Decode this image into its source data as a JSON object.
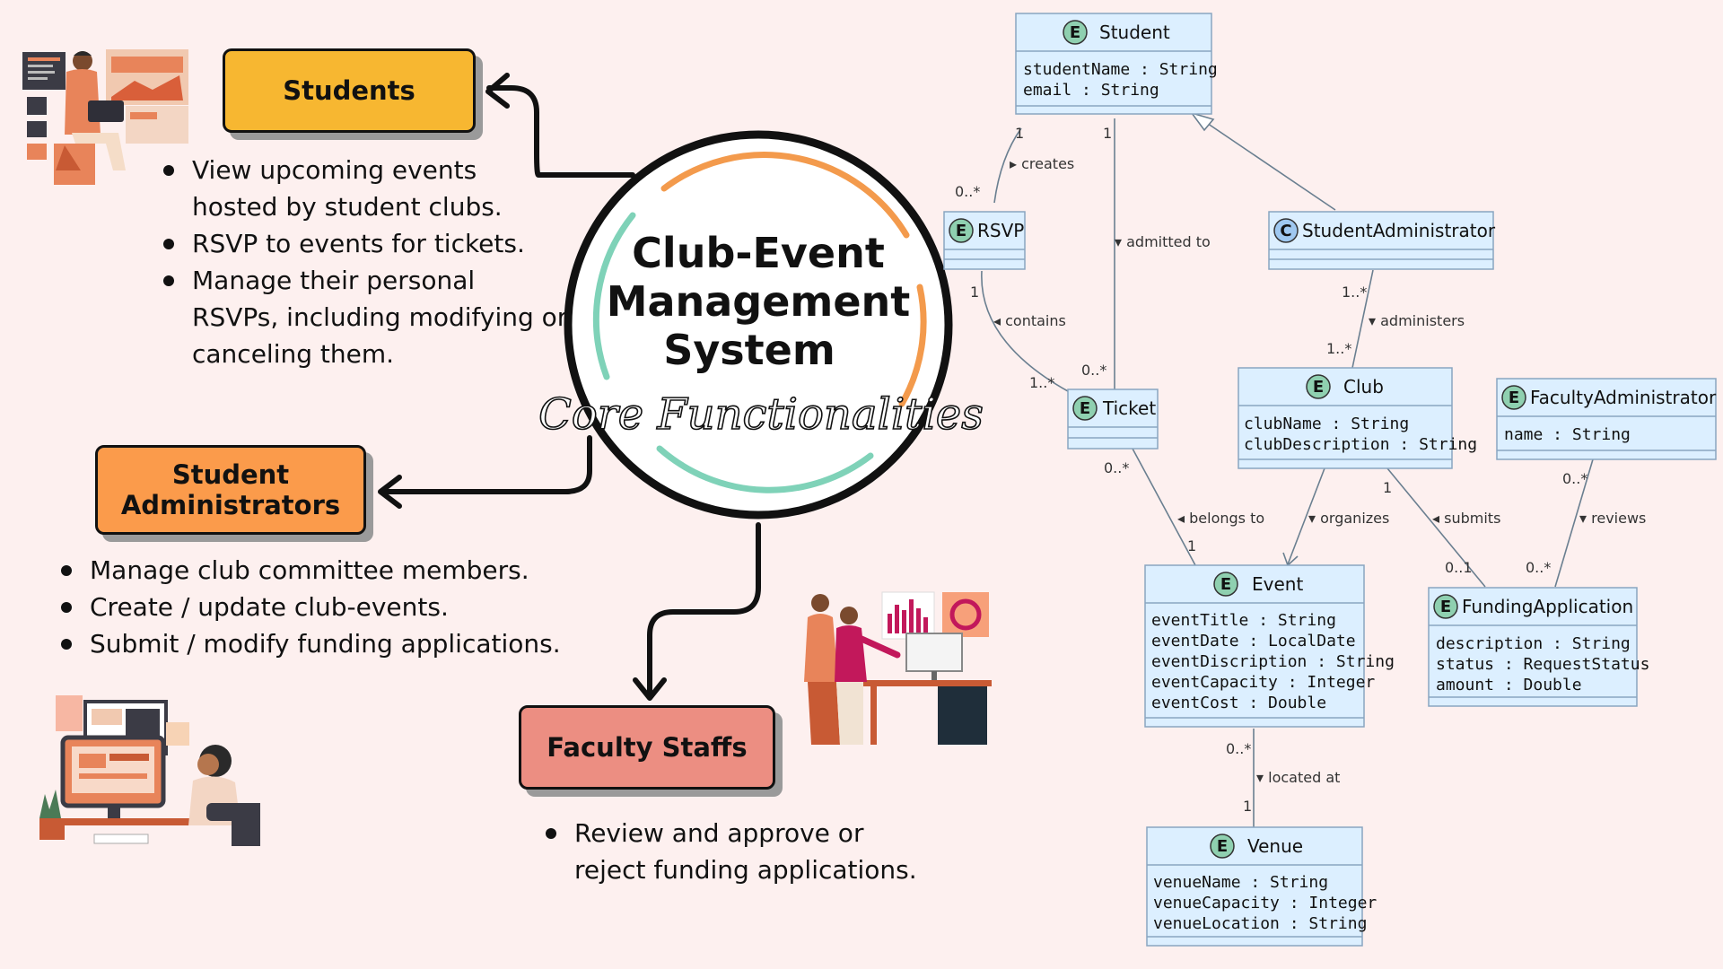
{
  "center": {
    "title_lines": [
      "Club-Event",
      "Management",
      "System"
    ],
    "subtitle": "Core Functionalities"
  },
  "roles": {
    "students": {
      "label": "Students",
      "color": "#f7b731",
      "bullets": [
        "View upcoming events",
        "hosted by student clubs.",
        "RSVP to events for tickets.",
        "Manage their personal",
        "RSVPs, including modifying or",
        "canceling them."
      ]
    },
    "student_admins": {
      "label_lines": [
        "Student",
        "Administrators"
      ],
      "color": "#fb9b4b",
      "bullets": [
        "Manage club committee members.",
        "Create / update club-events.",
        "Submit / modify funding applications."
      ]
    },
    "faculty": {
      "label": "Faculty Staffs",
      "color": "#ec8e82",
      "bullets": [
        "Review and approve or",
        "reject funding applications."
      ]
    }
  },
  "uml": {
    "classes": {
      "student": {
        "stereotype": "E",
        "name": "Student",
        "attrs": [
          "studentName : String",
          "email : String"
        ]
      },
      "rsvp": {
        "stereotype": "E",
        "name": "RSVP",
        "attrs": []
      },
      "student_admin": {
        "stereotype": "C",
        "name": "StudentAdministrator",
        "attrs": []
      },
      "ticket": {
        "stereotype": "E",
        "name": "Ticket",
        "attrs": []
      },
      "club": {
        "stereotype": "E",
        "name": "Club",
        "attrs": [
          "clubName : String",
          "clubDescription : String"
        ]
      },
      "faculty_admin": {
        "stereotype": "E",
        "name": "FacultyAdministrator",
        "attrs": [
          "name : String"
        ]
      },
      "event": {
        "stereotype": "E",
        "name": "Event",
        "attrs": [
          "eventTitle : String",
          "eventDate : LocalDate",
          "eventDiscription : String",
          "eventCapacity : Integer",
          "eventCost : Double"
        ]
      },
      "funding_app": {
        "stereotype": "E",
        "name": "FundingApplication",
        "attrs": [
          "description : String",
          "status : RequestStatus",
          "amount : Double"
        ]
      },
      "venue": {
        "stereotype": "E",
        "name": "Venue",
        "attrs": [
          "venueName : String",
          "venueCapacity : Integer",
          "venueLocation : String"
        ]
      }
    },
    "associations": {
      "creates": {
        "label": "creates",
        "m1": "1",
        "m2": "0..*"
      },
      "admitted_to": {
        "label": "admitted to",
        "m1": "1",
        "m2": "0..*"
      },
      "contains": {
        "label": "contains",
        "m1": "1",
        "m2": "1..*"
      },
      "administers": {
        "label": "administers",
        "m1": "1..*",
        "m2": "1..*"
      },
      "belongs_to": {
        "label": "belongs to",
        "m1": "0..*",
        "m2": "1"
      },
      "organizes": {
        "label": "organizes"
      },
      "submits": {
        "label": "submits",
        "m1": "1",
        "m2": "0..1"
      },
      "reviews": {
        "label": "reviews",
        "m1": "0..*",
        "m2": "0..*"
      },
      "located_at": {
        "label": "located at",
        "m1": "0..*",
        "m2": "1"
      }
    }
  },
  "colors": {
    "background": "#fdf0ef",
    "uml_fill": "#dcefff",
    "uml_stroke": "#8aa6c0",
    "badge_entity": "#8fd0b0",
    "badge_class": "#9fc8f0",
    "ring_orange": "#f39a4c",
    "ring_teal": "#7fd2b8"
  },
  "icons": {
    "illustration_1": "person-working-on-laptop-illustration",
    "illustration_2": "two-people-presenting-dashboard-illustration",
    "illustration_3": "woman-at-desktop-computer-illustration"
  }
}
